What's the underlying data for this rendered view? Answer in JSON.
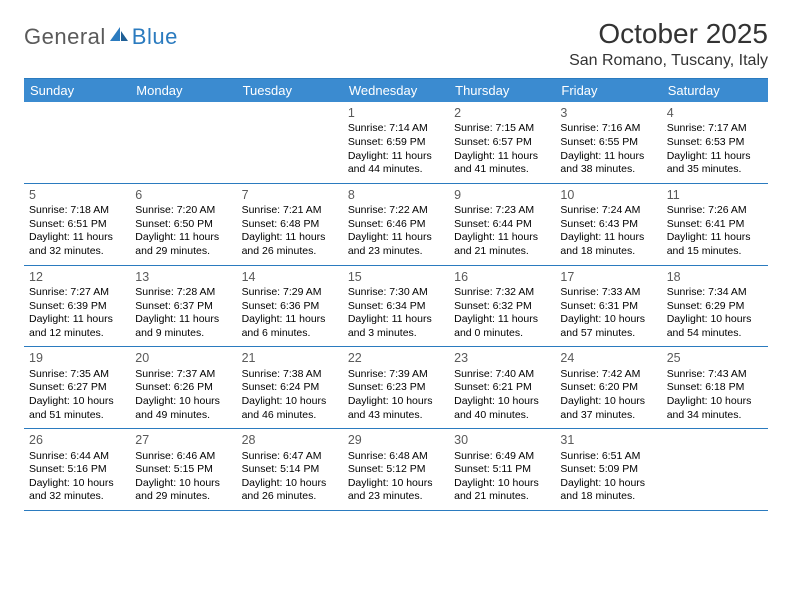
{
  "brand": {
    "part1": "General",
    "part2": "Blue"
  },
  "title": "October 2025",
  "location": "San Romano, Tuscany, Italy",
  "colors": {
    "header_bg": "#3b8bd0",
    "border": "#2b7bbf",
    "text": "#000000",
    "muted": "#5a5a5a",
    "white": "#ffffff"
  },
  "dayNames": [
    "Sunday",
    "Monday",
    "Tuesday",
    "Wednesday",
    "Thursday",
    "Friday",
    "Saturday"
  ],
  "weeks": [
    [
      null,
      null,
      null,
      {
        "n": "1",
        "sr": "Sunrise: 7:14 AM",
        "ss": "Sunset: 6:59 PM",
        "d1": "Daylight: 11 hours",
        "d2": "and 44 minutes."
      },
      {
        "n": "2",
        "sr": "Sunrise: 7:15 AM",
        "ss": "Sunset: 6:57 PM",
        "d1": "Daylight: 11 hours",
        "d2": "and 41 minutes."
      },
      {
        "n": "3",
        "sr": "Sunrise: 7:16 AM",
        "ss": "Sunset: 6:55 PM",
        "d1": "Daylight: 11 hours",
        "d2": "and 38 minutes."
      },
      {
        "n": "4",
        "sr": "Sunrise: 7:17 AM",
        "ss": "Sunset: 6:53 PM",
        "d1": "Daylight: 11 hours",
        "d2": "and 35 minutes."
      }
    ],
    [
      {
        "n": "5",
        "sr": "Sunrise: 7:18 AM",
        "ss": "Sunset: 6:51 PM",
        "d1": "Daylight: 11 hours",
        "d2": "and 32 minutes."
      },
      {
        "n": "6",
        "sr": "Sunrise: 7:20 AM",
        "ss": "Sunset: 6:50 PM",
        "d1": "Daylight: 11 hours",
        "d2": "and 29 minutes."
      },
      {
        "n": "7",
        "sr": "Sunrise: 7:21 AM",
        "ss": "Sunset: 6:48 PM",
        "d1": "Daylight: 11 hours",
        "d2": "and 26 minutes."
      },
      {
        "n": "8",
        "sr": "Sunrise: 7:22 AM",
        "ss": "Sunset: 6:46 PM",
        "d1": "Daylight: 11 hours",
        "d2": "and 23 minutes."
      },
      {
        "n": "9",
        "sr": "Sunrise: 7:23 AM",
        "ss": "Sunset: 6:44 PM",
        "d1": "Daylight: 11 hours",
        "d2": "and 21 minutes."
      },
      {
        "n": "10",
        "sr": "Sunrise: 7:24 AM",
        "ss": "Sunset: 6:43 PM",
        "d1": "Daylight: 11 hours",
        "d2": "and 18 minutes."
      },
      {
        "n": "11",
        "sr": "Sunrise: 7:26 AM",
        "ss": "Sunset: 6:41 PM",
        "d1": "Daylight: 11 hours",
        "d2": "and 15 minutes."
      }
    ],
    [
      {
        "n": "12",
        "sr": "Sunrise: 7:27 AM",
        "ss": "Sunset: 6:39 PM",
        "d1": "Daylight: 11 hours",
        "d2": "and 12 minutes."
      },
      {
        "n": "13",
        "sr": "Sunrise: 7:28 AM",
        "ss": "Sunset: 6:37 PM",
        "d1": "Daylight: 11 hours",
        "d2": "and 9 minutes."
      },
      {
        "n": "14",
        "sr": "Sunrise: 7:29 AM",
        "ss": "Sunset: 6:36 PM",
        "d1": "Daylight: 11 hours",
        "d2": "and 6 minutes."
      },
      {
        "n": "15",
        "sr": "Sunrise: 7:30 AM",
        "ss": "Sunset: 6:34 PM",
        "d1": "Daylight: 11 hours",
        "d2": "and 3 minutes."
      },
      {
        "n": "16",
        "sr": "Sunrise: 7:32 AM",
        "ss": "Sunset: 6:32 PM",
        "d1": "Daylight: 11 hours",
        "d2": "and 0 minutes."
      },
      {
        "n": "17",
        "sr": "Sunrise: 7:33 AM",
        "ss": "Sunset: 6:31 PM",
        "d1": "Daylight: 10 hours",
        "d2": "and 57 minutes."
      },
      {
        "n": "18",
        "sr": "Sunrise: 7:34 AM",
        "ss": "Sunset: 6:29 PM",
        "d1": "Daylight: 10 hours",
        "d2": "and 54 minutes."
      }
    ],
    [
      {
        "n": "19",
        "sr": "Sunrise: 7:35 AM",
        "ss": "Sunset: 6:27 PM",
        "d1": "Daylight: 10 hours",
        "d2": "and 51 minutes."
      },
      {
        "n": "20",
        "sr": "Sunrise: 7:37 AM",
        "ss": "Sunset: 6:26 PM",
        "d1": "Daylight: 10 hours",
        "d2": "and 49 minutes."
      },
      {
        "n": "21",
        "sr": "Sunrise: 7:38 AM",
        "ss": "Sunset: 6:24 PM",
        "d1": "Daylight: 10 hours",
        "d2": "and 46 minutes."
      },
      {
        "n": "22",
        "sr": "Sunrise: 7:39 AM",
        "ss": "Sunset: 6:23 PM",
        "d1": "Daylight: 10 hours",
        "d2": "and 43 minutes."
      },
      {
        "n": "23",
        "sr": "Sunrise: 7:40 AM",
        "ss": "Sunset: 6:21 PM",
        "d1": "Daylight: 10 hours",
        "d2": "and 40 minutes."
      },
      {
        "n": "24",
        "sr": "Sunrise: 7:42 AM",
        "ss": "Sunset: 6:20 PM",
        "d1": "Daylight: 10 hours",
        "d2": "and 37 minutes."
      },
      {
        "n": "25",
        "sr": "Sunrise: 7:43 AM",
        "ss": "Sunset: 6:18 PM",
        "d1": "Daylight: 10 hours",
        "d2": "and 34 minutes."
      }
    ],
    [
      {
        "n": "26",
        "sr": "Sunrise: 6:44 AM",
        "ss": "Sunset: 5:16 PM",
        "d1": "Daylight: 10 hours",
        "d2": "and 32 minutes."
      },
      {
        "n": "27",
        "sr": "Sunrise: 6:46 AM",
        "ss": "Sunset: 5:15 PM",
        "d1": "Daylight: 10 hours",
        "d2": "and 29 minutes."
      },
      {
        "n": "28",
        "sr": "Sunrise: 6:47 AM",
        "ss": "Sunset: 5:14 PM",
        "d1": "Daylight: 10 hours",
        "d2": "and 26 minutes."
      },
      {
        "n": "29",
        "sr": "Sunrise: 6:48 AM",
        "ss": "Sunset: 5:12 PM",
        "d1": "Daylight: 10 hours",
        "d2": "and 23 minutes."
      },
      {
        "n": "30",
        "sr": "Sunrise: 6:49 AM",
        "ss": "Sunset: 5:11 PM",
        "d1": "Daylight: 10 hours",
        "d2": "and 21 minutes."
      },
      {
        "n": "31",
        "sr": "Sunrise: 6:51 AM",
        "ss": "Sunset: 5:09 PM",
        "d1": "Daylight: 10 hours",
        "d2": "and 18 minutes."
      },
      null
    ]
  ]
}
